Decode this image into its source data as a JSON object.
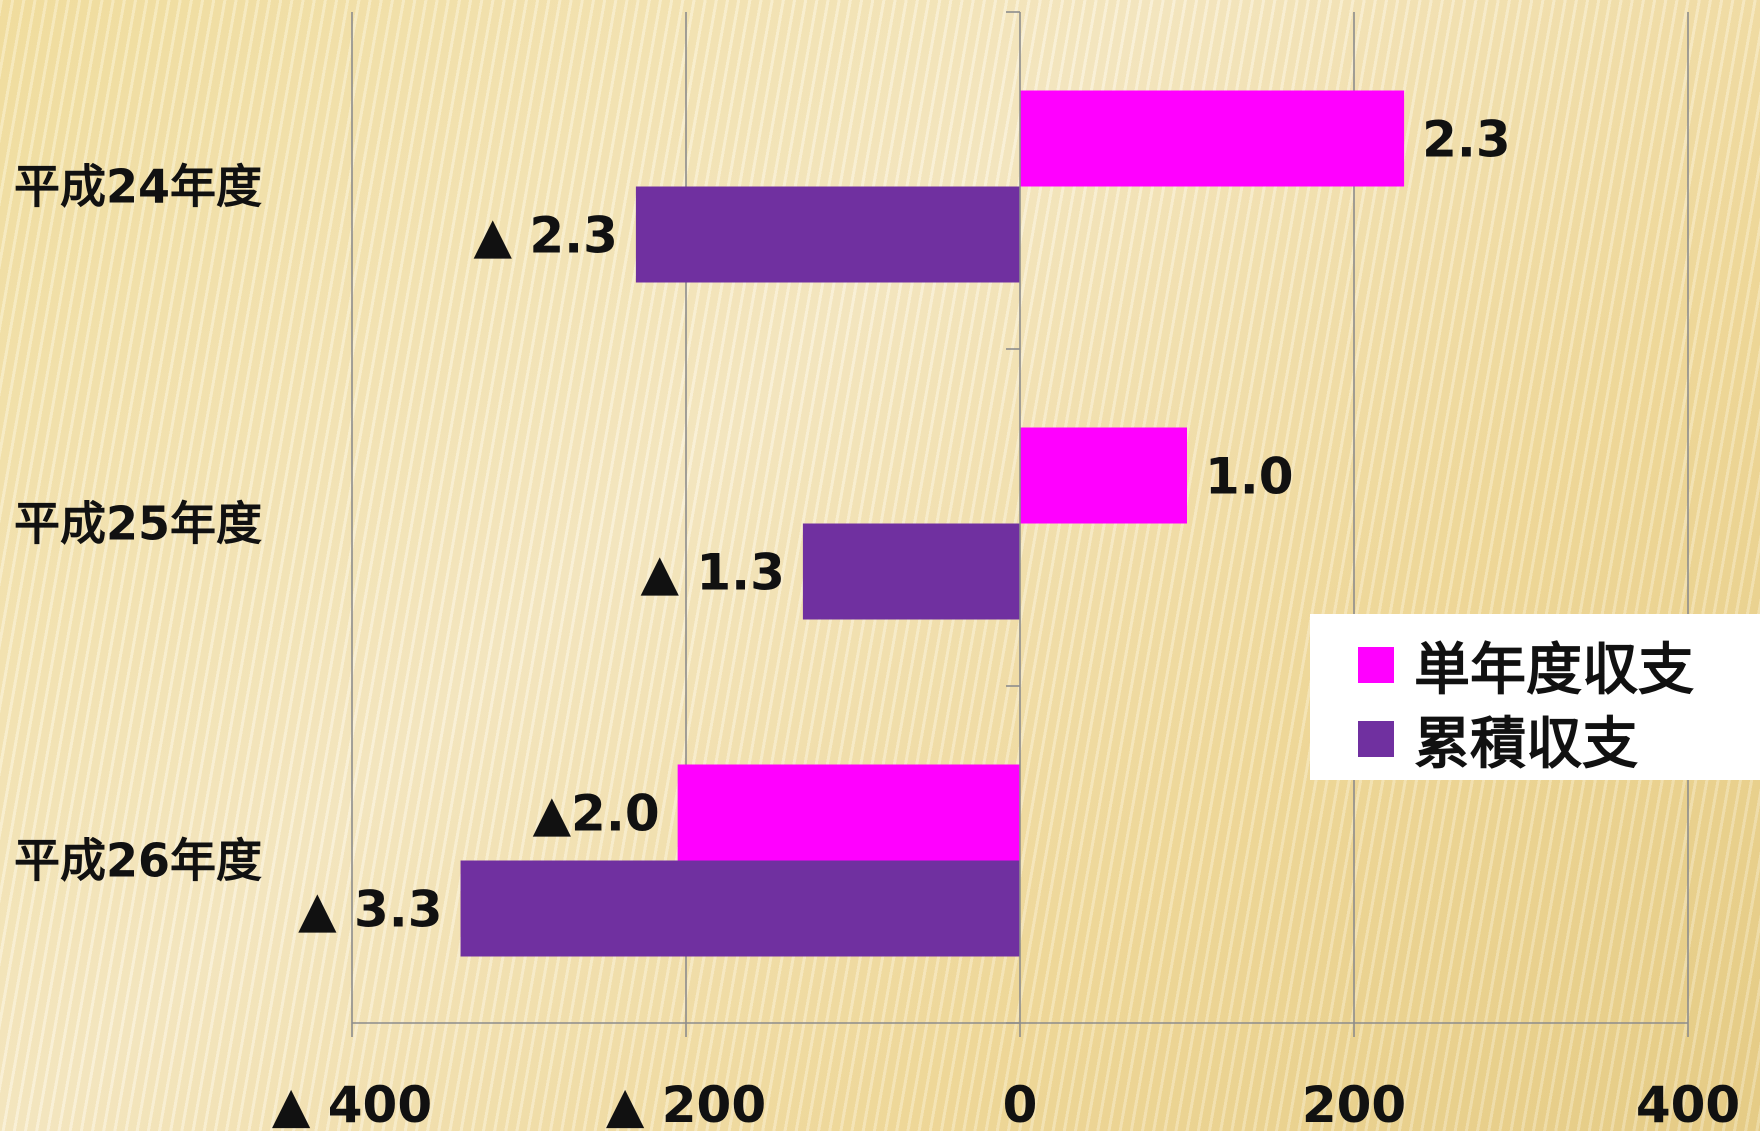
{
  "colors": {
    "single": "#ff00ff",
    "cumulative": "#7030a0",
    "grid": "#8c8c8c"
  },
  "legend": {
    "position": "right",
    "items": [
      {
        "label": "単年度収支",
        "color": "#ff00ff"
      },
      {
        "label": "累積収支",
        "color": "#7030a0"
      }
    ]
  },
  "chart_data": {
    "type": "bar",
    "orientation": "horizontal",
    "categories": [
      "平成24年度",
      "平成25年度",
      "平成26年度"
    ],
    "series": [
      {
        "name": "単年度収支",
        "values": [
          230,
          100,
          -205
        ],
        "labels": [
          "2.3",
          "1.0",
          "▲2.0"
        ]
      },
      {
        "name": "累積収支",
        "values": [
          -230,
          -130,
          -335
        ],
        "labels": [
          "▲ 2.3",
          "▲ 1.3",
          "▲ 3.3"
        ]
      }
    ],
    "xlim": [
      -400,
      400
    ],
    "xticks": [
      -400,
      -200,
      0,
      200,
      400
    ],
    "xtick_labels": [
      "▲ 400",
      "▲ 200",
      "0",
      "200",
      "400"
    ],
    "grid": true
  }
}
